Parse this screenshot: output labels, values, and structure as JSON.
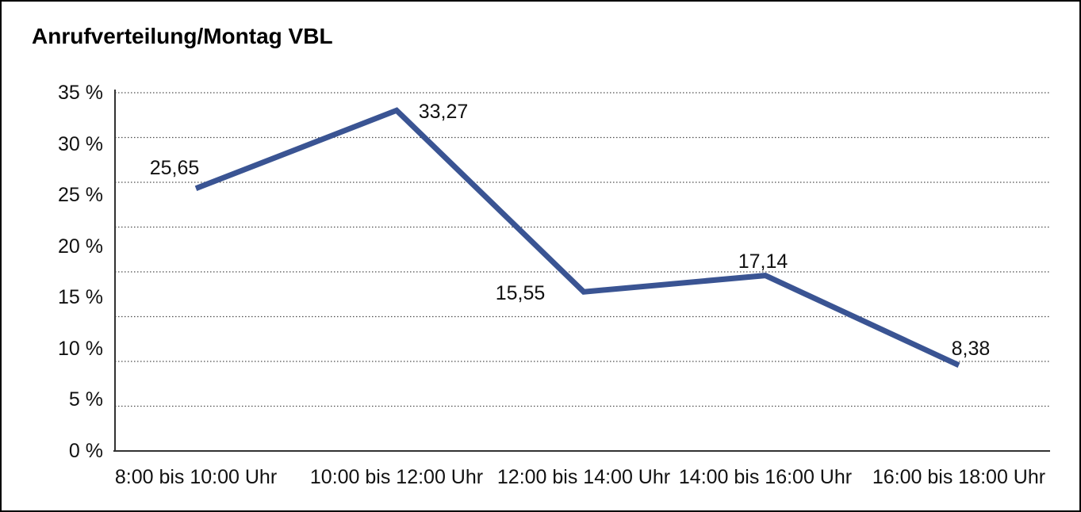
{
  "chart_data": {
    "type": "line",
    "title": "Anrufverteilung/Montag VBL",
    "categories": [
      "8:00 bis 10:00 Uhr",
      "10:00 bis 12:00 Uhr",
      "12:00 bis 14:00 Uhr",
      "14:00 bis 16:00 Uhr",
      "16:00 bis 18:00 Uhr"
    ],
    "values": [
      25.65,
      33.27,
      15.55,
      17.14,
      8.38
    ],
    "point_labels": [
      "25,65",
      "33,27",
      "15,55",
      "17,14",
      "8,38"
    ],
    "y_tick_labels": [
      "35 %",
      "30 %",
      "25 %",
      "20 %",
      "15 %",
      "10 %",
      "5 %",
      "0 %"
    ],
    "ylabel": "",
    "xlabel": "",
    "ylim": [
      0,
      35
    ],
    "y_tick_step": 5,
    "grid": "horizontal-dotted",
    "gridline_count": 9,
    "legend": "none",
    "line_color": "#3A5493",
    "axis_color": "#333333",
    "gridline_color": "#4d4d4d",
    "text_color": "#111111",
    "decimal_separator": ","
  }
}
